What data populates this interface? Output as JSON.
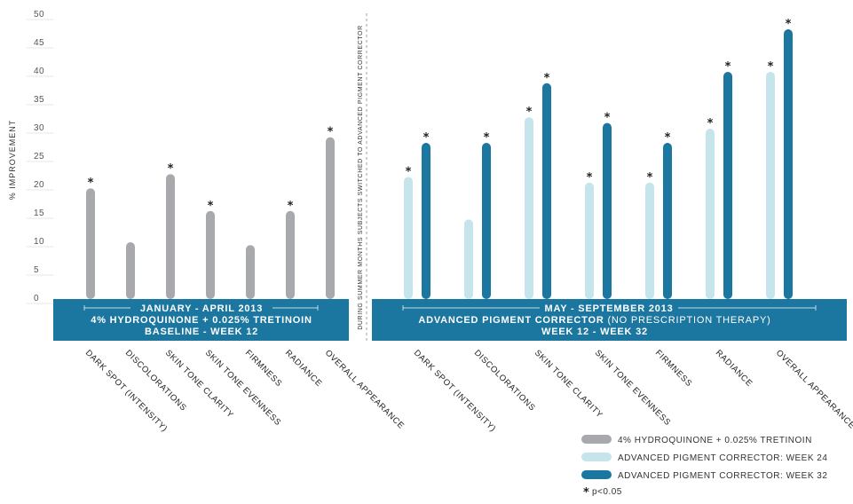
{
  "chart_data": {
    "type": "bar",
    "ylabel": "% IMPROVEMENT",
    "ylim": [
      0,
      50
    ],
    "yticks": [
      0,
      5,
      10,
      15,
      20,
      25,
      30,
      35,
      40,
      45,
      50
    ],
    "grid": false,
    "separator_label": "DURING SUMMER MONTHS SUBJECTS SWITCHED TO ADVANCED PIGMENT CORRECTOR",
    "panels": [
      {
        "band_lines": [
          "JANUARY - APRIL 2013",
          "4% HYDROQUINONE + 0.025% TRETINOIN",
          "BASELINE - WEEK 12"
        ],
        "categories": [
          "DARK SPOT (INTENSITY)",
          "DISCOLORATIONS",
          "SKIN TONE CLARITY",
          "SKIN TONE EVENNESS",
          "FIRMNESS",
          "RADIANCE",
          "OVERALL APPEARANCE"
        ],
        "series": [
          {
            "name": "4% HYDROQUINONE + 0.025% TRETINOIN",
            "color": "#a7a9ac",
            "values": [
              19.5,
              10,
              22,
              15.5,
              9.5,
              15.5,
              28.5
            ],
            "significant": [
              true,
              false,
              true,
              true,
              false,
              true,
              true
            ]
          }
        ]
      },
      {
        "band_lines": [
          "MAY - SEPTEMBER 2013",
          "ADVANCED PIGMENT CORRECTOR",
          "(NO PRESCRIPTION THERAPY)",
          "WEEK 12 - WEEK 32"
        ],
        "categories": [
          "DARK SPOT (INTENSITY)",
          "DISCOLORATIONS",
          "SKIN TONE CLARITY",
          "SKIN TONE EVENNESS",
          "FIRMNESS",
          "RADIANCE",
          "OVERALL APPEARANCE"
        ],
        "series": [
          {
            "name": "ADVANCED PIGMENT CORRECTOR: WEEK 24",
            "color": "#c5e4ec",
            "values": [
              21.5,
              14,
              32,
              20.5,
              20.5,
              30,
              40
            ],
            "significant": [
              true,
              false,
              true,
              true,
              true,
              true,
              true
            ]
          },
          {
            "name": "ADVANCED PIGMENT CORRECTOR: WEEK 32",
            "color": "#1b76a0",
            "values": [
              27.5,
              27.5,
              38,
              31,
              27.5,
              40,
              47.5
            ],
            "significant": [
              true,
              true,
              true,
              true,
              true,
              true,
              true
            ]
          }
        ]
      }
    ],
    "legend": {
      "position": "bottom-right",
      "items": [
        {
          "label": "4% HYDROQUINONE + 0.025% TRETINOIN",
          "color": "#a7a9ac"
        },
        {
          "label": "ADVANCED PIGMENT CORRECTOR: WEEK 24",
          "color": "#c5e4ec"
        },
        {
          "label": "ADVANCED PIGMENT CORRECTOR: WEEK 32",
          "color": "#1b76a0"
        }
      ],
      "significance_marker": "*",
      "significance_label": "p<0.05"
    },
    "band_color": "#1b76a0"
  }
}
